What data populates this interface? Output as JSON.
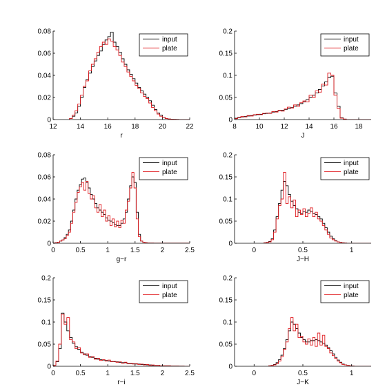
{
  "legend": {
    "input": "input",
    "plate": "plate"
  },
  "colors": {
    "input": "#000000",
    "plate": "#e0191e",
    "axis": "#000000"
  },
  "chart_data": [
    {
      "type": "histogram",
      "xlabel": "r",
      "xlim": [
        12,
        22
      ],
      "ylim": [
        0,
        0.08
      ],
      "xticks": [
        12,
        14,
        16,
        18,
        20,
        22
      ],
      "xtick_labels": [
        "12",
        "14",
        "16",
        "18",
        "20",
        "22"
      ],
      "yticks": [
        0,
        0.02,
        0.04,
        0.06,
        0.08
      ],
      "ytick_labels": [
        "0",
        "0.02",
        "0.04",
        "0.06",
        "0.08"
      ],
      "legend_position": "top-right",
      "bin_width": 0.2,
      "series": [
        {
          "name": "input",
          "x0": 13.2,
          "values": [
            0.001,
            0.003,
            0.006,
            0.012,
            0.02,
            0.029,
            0.036,
            0.042,
            0.048,
            0.053,
            0.058,
            0.062,
            0.068,
            0.072,
            0.075,
            0.079,
            0.07,
            0.066,
            0.061,
            0.055,
            0.05,
            0.045,
            0.041,
            0.037,
            0.033,
            0.029,
            0.026,
            0.023,
            0.02,
            0.017,
            0.013,
            0.009,
            0.006,
            0.004,
            0.002,
            0.001,
            0.0005,
            0.0003,
            0.0002,
            0.0001
          ]
        },
        {
          "name": "plate",
          "x0": 13.2,
          "values": [
            0.001,
            0.004,
            0.008,
            0.014,
            0.022,
            0.03,
            0.035,
            0.044,
            0.05,
            0.055,
            0.061,
            0.066,
            0.07,
            0.068,
            0.073,
            0.071,
            0.066,
            0.063,
            0.058,
            0.052,
            0.048,
            0.043,
            0.039,
            0.035,
            0.031,
            0.028,
            0.024,
            0.021,
            0.019,
            0.015,
            0.011,
            0.008,
            0.005,
            0.003,
            0.002,
            0.001,
            0.0005,
            0.0003,
            0.0002,
            0.0001
          ]
        }
      ]
    },
    {
      "type": "histogram",
      "xlabel": "J",
      "xlim": [
        8,
        19
      ],
      "ylim": [
        0,
        0.2
      ],
      "xticks": [
        8,
        10,
        12,
        14,
        16,
        18
      ],
      "xtick_labels": [
        "8",
        "10",
        "12",
        "14",
        "16",
        "18"
      ],
      "yticks": [
        0,
        0.05,
        0.1,
        0.15,
        0.2
      ],
      "ytick_labels": [
        "0",
        "0.05",
        "0.1",
        "0.15",
        "0.2"
      ],
      "legend_position": "top-right",
      "bin_width": 0.25,
      "series": [
        {
          "name": "input",
          "x0": 8.0,
          "values": [
            0.003,
            0.005,
            0.006,
            0.007,
            0.008,
            0.009,
            0.01,
            0.011,
            0.012,
            0.013,
            0.014,
            0.015,
            0.017,
            0.018,
            0.02,
            0.021,
            0.023,
            0.025,
            0.027,
            0.03,
            0.033,
            0.036,
            0.04,
            0.045,
            0.05,
            0.055,
            0.06,
            0.068,
            0.076,
            0.085,
            0.095,
            0.098,
            0.06,
            0.03,
            0.004,
            0.001
          ]
        },
        {
          "name": "plate",
          "x0": 8.0,
          "values": [
            0.002,
            0.004,
            0.007,
            0.006,
            0.009,
            0.008,
            0.011,
            0.012,
            0.011,
            0.014,
            0.015,
            0.014,
            0.018,
            0.017,
            0.021,
            0.019,
            0.024,
            0.028,
            0.026,
            0.033,
            0.03,
            0.038,
            0.042,
            0.04,
            0.055,
            0.05,
            0.065,
            0.062,
            0.08,
            0.078,
            0.105,
            0.1,
            0.055,
            0.025,
            0.003,
            0.001
          ]
        }
      ]
    },
    {
      "type": "histogram",
      "xlabel": "g−r",
      "xlim": [
        0,
        2.5
      ],
      "ylim": [
        0,
        0.08
      ],
      "xticks": [
        0,
        0.5,
        1,
        1.5,
        2,
        2.5
      ],
      "xtick_labels": [
        "0",
        "0.5",
        "1",
        "1.5",
        "2",
        "2.5"
      ],
      "yticks": [
        0,
        0.02,
        0.04,
        0.06,
        0.08
      ],
      "ytick_labels": [
        "0",
        "0.02",
        "0.04",
        "0.06",
        "0.08"
      ],
      "legend_position": "top-right",
      "bin_width": 0.04,
      "series": [
        {
          "name": "input",
          "x0": 0.0,
          "values": [
            0.0003,
            0.0005,
            0.001,
            0.002,
            0.003,
            0.005,
            0.008,
            0.012,
            0.02,
            0.03,
            0.04,
            0.048,
            0.053,
            0.058,
            0.059,
            0.055,
            0.05,
            0.044,
            0.04,
            0.036,
            0.032,
            0.03,
            0.028,
            0.026,
            0.023,
            0.021,
            0.02,
            0.019,
            0.017,
            0.016,
            0.016,
            0.018,
            0.022,
            0.028,
            0.04,
            0.052,
            0.06,
            0.055,
            0.028,
            0.008,
            0.002,
            0.001,
            0.0005,
            0.0003,
            0.0002,
            0.0002,
            0.0001,
            0.0001,
            0.0001,
            0.0001,
            0.0001,
            0.0001,
            0.0001,
            0.0001,
            0.0001,
            0.0001,
            0.0001,
            0.0001,
            0.0001,
            0.0001,
            0.0001,
            0.0001
          ]
        },
        {
          "name": "plate",
          "x0": 0.0,
          "values": [
            0.0003,
            0.0005,
            0.001,
            0.002,
            0.003,
            0.004,
            0.007,
            0.01,
            0.018,
            0.028,
            0.037,
            0.046,
            0.051,
            0.055,
            0.048,
            0.056,
            0.045,
            0.04,
            0.043,
            0.032,
            0.028,
            0.035,
            0.024,
            0.03,
            0.02,
            0.025,
            0.016,
            0.022,
            0.015,
            0.02,
            0.014,
            0.021,
            0.018,
            0.03,
            0.038,
            0.05,
            0.064,
            0.05,
            0.022,
            0.006,
            0.002,
            0.001,
            0.0005,
            0.0003,
            0.0002,
            0.0002,
            0.0001,
            0.0001,
            0.0001,
            0.0001,
            0.0001,
            0.0001,
            0.0001,
            0.0001,
            0.0001,
            0.0001,
            0.0001,
            0.0001,
            0.0001,
            0.0001,
            0.0001,
            0.0001
          ]
        }
      ]
    },
    {
      "type": "histogram",
      "xlabel": "J−H",
      "xlim": [
        -0.2,
        1.2
      ],
      "ylim": [
        0,
        0.2
      ],
      "xticks": [
        0,
        0.5,
        1
      ],
      "xtick_labels": [
        "0",
        "0.5",
        "1"
      ],
      "yticks": [
        0,
        0.05,
        0.1,
        0.15,
        0.2
      ],
      "ytick_labels": [
        "0",
        "0.05",
        "0.1",
        "0.15",
        "0.2"
      ],
      "legend_position": "top-right",
      "bin_width": 0.025,
      "series": [
        {
          "name": "input",
          "x0": 0.1,
          "values": [
            0.001,
            0.002,
            0.004,
            0.01,
            0.03,
            0.06,
            0.09,
            0.12,
            0.14,
            0.13,
            0.11,
            0.095,
            0.085,
            0.078,
            0.07,
            0.068,
            0.072,
            0.07,
            0.075,
            0.072,
            0.068,
            0.065,
            0.06,
            0.055,
            0.045,
            0.035,
            0.025,
            0.016,
            0.01,
            0.006,
            0.003,
            0.002,
            0.001,
            0.0005
          ]
        },
        {
          "name": "plate",
          "x0": 0.1,
          "values": [
            0.001,
            0.002,
            0.003,
            0.008,
            0.025,
            0.055,
            0.085,
            0.1,
            0.16,
            0.09,
            0.105,
            0.08,
            0.098,
            0.06,
            0.075,
            0.065,
            0.078,
            0.06,
            0.068,
            0.08,
            0.06,
            0.07,
            0.055,
            0.05,
            0.04,
            0.03,
            0.02,
            0.012,
            0.008,
            0.005,
            0.003,
            0.002,
            0.001,
            0.0005
          ]
        }
      ]
    },
    {
      "type": "histogram",
      "xlabel": "r−i",
      "xlim": [
        0,
        2.5
      ],
      "ylim": [
        0,
        0.2
      ],
      "xticks": [
        0,
        0.5,
        1,
        1.5,
        2,
        2.5
      ],
      "xtick_labels": [
        "0",
        "0.5",
        "1",
        "1.5",
        "2",
        "2.5"
      ],
      "yticks": [
        0,
        0.05,
        0.1,
        0.15,
        0.2
      ],
      "ytick_labels": [
        "0",
        "0.05",
        "0.1",
        "0.15",
        "0.2"
      ],
      "legend_position": "top-right",
      "bin_width": 0.05,
      "series": [
        {
          "name": "input",
          "x0": 0.0,
          "values": [
            0.002,
            0.01,
            0.04,
            0.12,
            0.1,
            0.08,
            0.065,
            0.052,
            0.044,
            0.038,
            0.032,
            0.028,
            0.025,
            0.022,
            0.02,
            0.018,
            0.016,
            0.015,
            0.014,
            0.013,
            0.012,
            0.011,
            0.01,
            0.01,
            0.009,
            0.008,
            0.008,
            0.007,
            0.006,
            0.006,
            0.005,
            0.005,
            0.004,
            0.004,
            0.003,
            0.003,
            0.002,
            0.002,
            0.002,
            0.001,
            0.001,
            0.001,
            0.001,
            0.0005,
            0.0005,
            0.0005,
            0.0003,
            0.0002,
            0.0001,
            0.0001
          ]
        },
        {
          "name": "plate",
          "x0": 0.0,
          "values": [
            0.002,
            0.012,
            0.05,
            0.118,
            0.095,
            0.11,
            0.06,
            0.055,
            0.04,
            0.042,
            0.03,
            0.026,
            0.028,
            0.02,
            0.022,
            0.016,
            0.018,
            0.013,
            0.015,
            0.012,
            0.014,
            0.01,
            0.011,
            0.009,
            0.01,
            0.007,
            0.009,
            0.006,
            0.007,
            0.005,
            0.006,
            0.004,
            0.005,
            0.003,
            0.004,
            0.002,
            0.003,
            0.002,
            0.002,
            0.001,
            0.001,
            0.001,
            0.001,
            0.0005,
            0.0005,
            0.0005,
            0.0003,
            0.0002,
            0.0001,
            0.0001
          ]
        }
      ]
    },
    {
      "type": "histogram",
      "xlabel": "J−K",
      "xlim": [
        -0.2,
        1.2
      ],
      "ylim": [
        0,
        0.2
      ],
      "xticks": [
        0,
        0.5,
        1
      ],
      "xtick_labels": [
        "0",
        "0.5",
        "1"
      ],
      "yticks": [
        0,
        0.05,
        0.1,
        0.15,
        0.2
      ],
      "ytick_labels": [
        "0",
        "0.05",
        "0.1",
        "0.15",
        "0.2"
      ],
      "legend_position": "top-right",
      "bin_width": 0.025,
      "series": [
        {
          "name": "input",
          "x0": 0.15,
          "values": [
            0.001,
            0.002,
            0.004,
            0.008,
            0.015,
            0.025,
            0.04,
            0.06,
            0.08,
            0.1,
            0.095,
            0.085,
            0.075,
            0.065,
            0.06,
            0.055,
            0.055,
            0.058,
            0.058,
            0.06,
            0.058,
            0.055,
            0.052,
            0.048,
            0.042,
            0.035,
            0.028,
            0.02,
            0.014,
            0.009,
            0.005,
            0.003,
            0.002,
            0.001,
            0.0005
          ]
        },
        {
          "name": "plate",
          "x0": 0.15,
          "values": [
            0.001,
            0.002,
            0.003,
            0.006,
            0.012,
            0.022,
            0.038,
            0.055,
            0.085,
            0.11,
            0.08,
            0.095,
            0.065,
            0.068,
            0.055,
            0.05,
            0.062,
            0.048,
            0.065,
            0.045,
            0.075,
            0.048,
            0.07,
            0.045,
            0.04,
            0.03,
            0.024,
            0.018,
            0.012,
            0.008,
            0.004,
            0.003,
            0.002,
            0.001,
            0.0005
          ]
        }
      ]
    }
  ]
}
